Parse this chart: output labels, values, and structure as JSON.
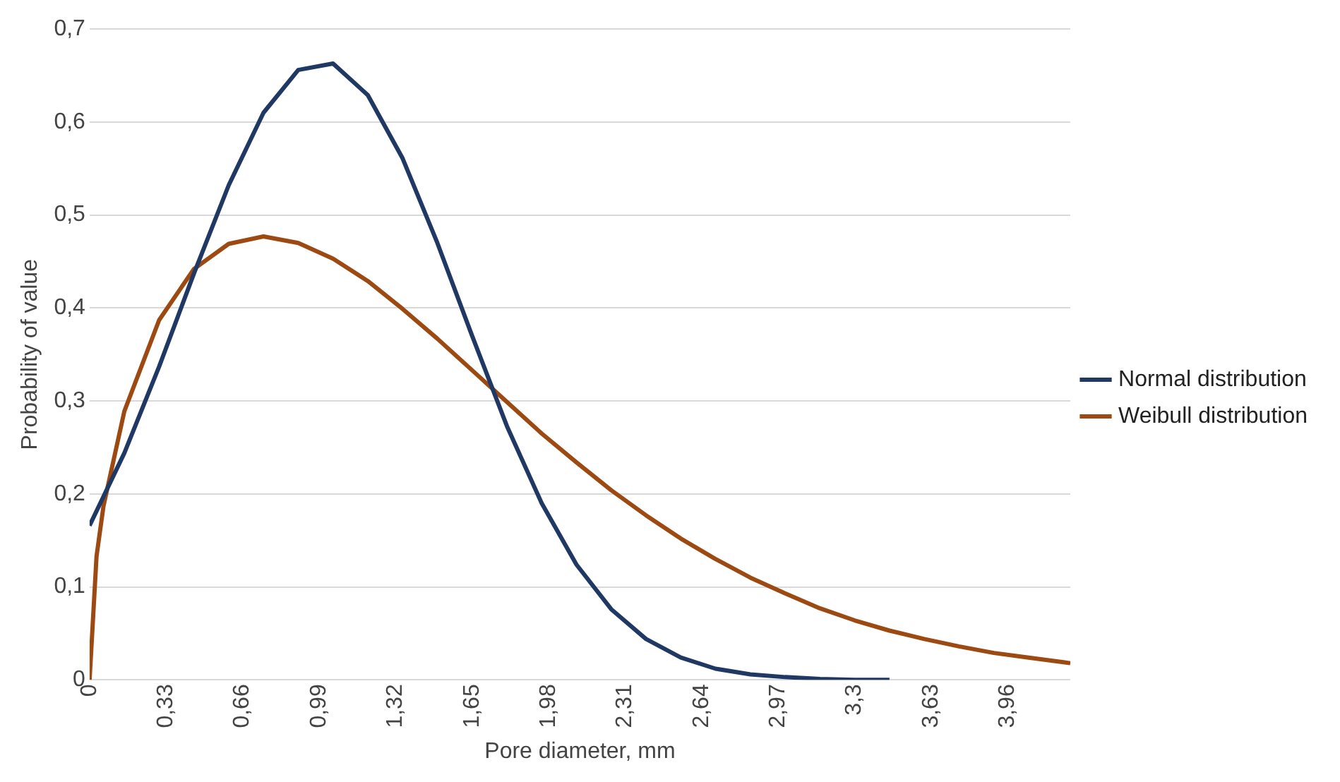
{
  "chart_data": {
    "type": "line",
    "xlabel": "Pore diameter, mm",
    "ylabel": "Probability of value",
    "xlim": [
      0,
      4.23
    ],
    "xticks": [
      0,
      {
        "value": 0.33,
        "label": "0,33"
      },
      {
        "value": 0.66,
        "label": "0,66"
      },
      {
        "value": 0.99,
        "label": "0,99"
      },
      {
        "value": 1.32,
        "label": "1,32"
      },
      {
        "value": 1.65,
        "label": "1,65"
      },
      {
        "value": 1.98,
        "label": "1,98"
      },
      {
        "value": 2.31,
        "label": "2,31"
      },
      {
        "value": 2.64,
        "label": "2,64"
      },
      {
        "value": 2.97,
        "label": "2,97"
      },
      {
        "value": 3.3,
        "label": "3,3"
      },
      {
        "value": 3.63,
        "label": "3,63"
      },
      {
        "value": 3.96,
        "label": "3,96"
      }
    ],
    "ylim": [
      0,
      0.7
    ],
    "yticks": [
      0,
      {
        "value": 0.1,
        "label": "0,1"
      },
      {
        "value": 0.2,
        "label": "0,2"
      },
      {
        "value": 0.3,
        "label": "0,3"
      },
      {
        "value": 0.4,
        "label": "0,4"
      },
      {
        "value": 0.5,
        "label": "0,5"
      },
      {
        "value": 0.6,
        "label": "0,6"
      },
      {
        "value": 0.7,
        "label": "0,7"
      }
    ],
    "grid": "y",
    "legend": "right",
    "marker": "none",
    "line_style": "solid",
    "series": [
      {
        "name": "Normal distribution",
        "color": "#203864",
        "x": [
          0,
          0.15,
          0.3,
          0.45,
          0.6,
          0.75,
          0.9,
          1.05,
          1.2,
          1.35,
          1.5,
          1.65,
          1.8,
          1.95,
          2.1,
          2.25,
          2.4,
          2.55,
          2.7,
          2.85,
          3.0,
          3.15,
          3.3,
          3.45
        ],
        "values": [
          0.166,
          0.244,
          0.337,
          0.437,
          0.532,
          0.61,
          0.656,
          0.663,
          0.629,
          0.561,
          0.47,
          0.37,
          0.273,
          0.19,
          0.124,
          0.076,
          0.044,
          0.024,
          0.012,
          0.006,
          0.003,
          0.001,
          0,
          0
        ]
      },
      {
        "name": "Weibull distribution",
        "color": "#9c4a12",
        "x": [
          0,
          0.03,
          0.06,
          0.15,
          0.3,
          0.45,
          0.6,
          0.75,
          0.9,
          1.05,
          1.2,
          1.35,
          1.5,
          1.65,
          1.8,
          1.95,
          2.1,
          2.25,
          2.4,
          2.55,
          2.7,
          2.85,
          3.0,
          3.15,
          3.3,
          3.45,
          3.6,
          3.75,
          3.9,
          4.05,
          4.2,
          4.23
        ],
        "values": [
          0,
          0.133,
          0.187,
          0.289,
          0.387,
          0.442,
          0.469,
          0.477,
          0.47,
          0.453,
          0.429,
          0.399,
          0.367,
          0.333,
          0.299,
          0.265,
          0.234,
          0.204,
          0.177,
          0.152,
          0.13,
          0.11,
          0.093,
          0.077,
          0.064,
          0.053,
          0.044,
          0.036,
          0.029,
          0.024,
          0.019,
          0.018
        ]
      }
    ]
  }
}
